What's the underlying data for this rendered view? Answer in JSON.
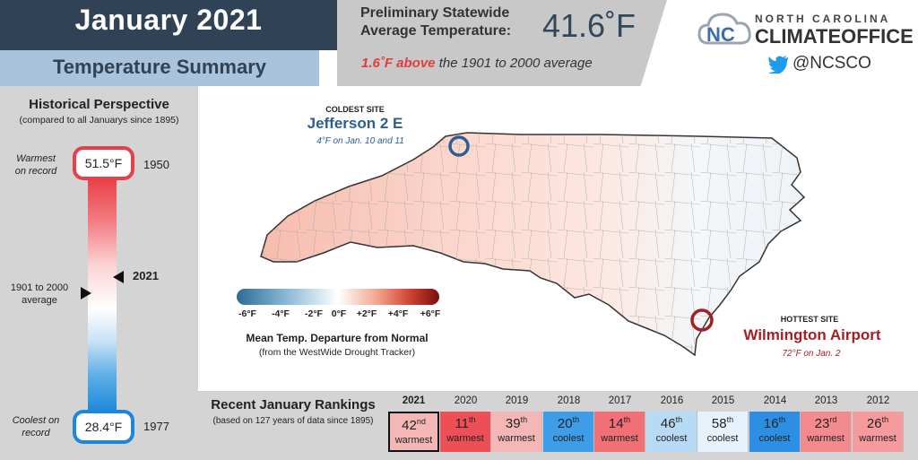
{
  "header": {
    "title": "January 2021",
    "subtitle": "Temperature Summary"
  },
  "statewide": {
    "line1": "Preliminary Statewide",
    "line2": "Average Temperature:",
    "value": "41.6˚F",
    "anomaly": "1.6˚F above",
    "anomaly_rest": " the 1901 to 2000 average"
  },
  "brand": {
    "line1": "NORTH CAROLINA",
    "line2": "CLIMATEOFFICE",
    "twitter_handle": "@NCSCO",
    "logo_icon": "nc-cloud-logo-icon",
    "twitter_icon": "twitter-bird-icon"
  },
  "historical": {
    "title": "Historical Perspective",
    "subtitle": "(compared to all Januarys since 1895)",
    "warmest_label": "Warmest on record",
    "warmest_value": "51.5°F",
    "warmest_year": "1950",
    "coolest_label": "Coolest on record",
    "coolest_value": "28.4°F",
    "coolest_year": "1977",
    "average_label": "1901 to 2000 average",
    "current_year": "2021"
  },
  "sites": {
    "coldest": {
      "label": "COLDEST SITE",
      "name": "Jefferson 2 E",
      "detail": "4°F on Jan. 10 and 11"
    },
    "hottest": {
      "label": "HOTTEST SITE",
      "name": "Wilmington Airport",
      "detail": "72°F on Jan. 2"
    }
  },
  "legend": {
    "ticks": [
      "-6°F",
      "-4°F",
      "-2°F",
      "0°F",
      "+2°F",
      "+4°F",
      "+6°F"
    ],
    "title": "Mean Temp. Departure from Normal",
    "subtitle": "(from the WestWide Drought Tracker)"
  },
  "rankings": {
    "title": "Recent January Rankings",
    "subtitle": "(based on 127 years of data since 1895)",
    "items": [
      {
        "year": "2021",
        "rank": "42",
        "suffix": "nd",
        "type": "warmest",
        "color": "#f5b6b6"
      },
      {
        "year": "2020",
        "rank": "11",
        "suffix": "th",
        "type": "warmest",
        "color": "#ee4e55"
      },
      {
        "year": "2019",
        "rank": "39",
        "suffix": "th",
        "type": "warmest",
        "color": "#f5b6b6"
      },
      {
        "year": "2018",
        "rank": "20",
        "suffix": "th",
        "type": "coolest",
        "color": "#3d9de8"
      },
      {
        "year": "2017",
        "rank": "14",
        "suffix": "th",
        "type": "warmest",
        "color": "#f07076"
      },
      {
        "year": "2016",
        "rank": "46",
        "suffix": "th",
        "type": "coolest",
        "color": "#b8dbf5"
      },
      {
        "year": "2015",
        "rank": "58",
        "suffix": "th",
        "type": "coolest",
        "color": "#e7f3fc"
      },
      {
        "year": "2014",
        "rank": "16",
        "suffix": "th",
        "type": "coolest",
        "color": "#2d8fe3"
      },
      {
        "year": "2013",
        "rank": "23",
        "suffix": "rd",
        "type": "warmest",
        "color": "#f38a8e"
      },
      {
        "year": "2012",
        "rank": "26",
        "suffix": "th",
        "type": "warmest",
        "color": "#f59a9d"
      }
    ]
  }
}
